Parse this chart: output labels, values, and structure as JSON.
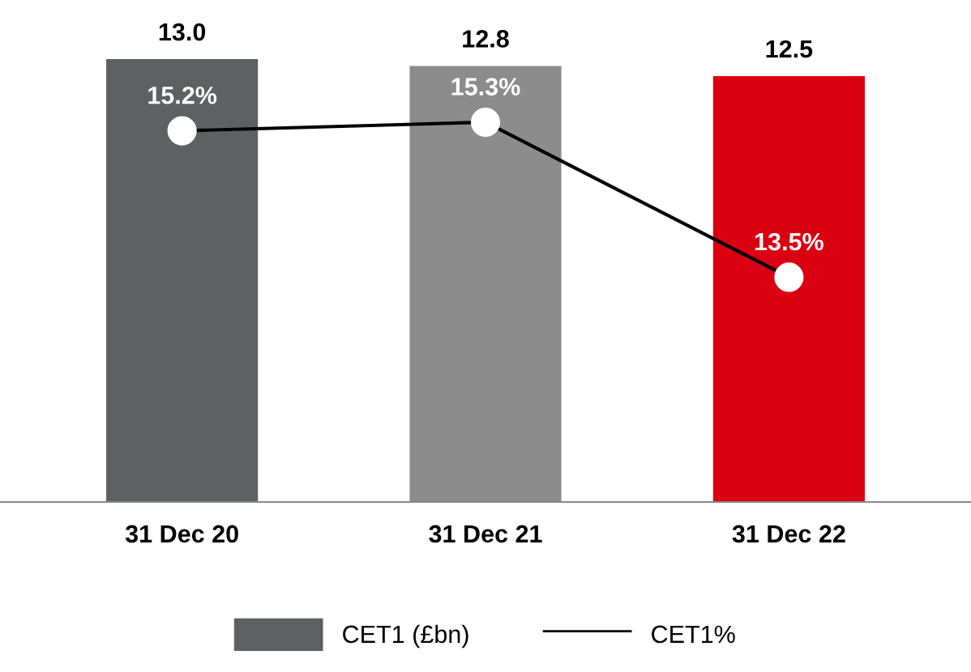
{
  "chart_data": {
    "type": "bar",
    "categories": [
      "31 Dec 20",
      "31 Dec 21",
      "31 Dec 22"
    ],
    "series": [
      {
        "name": "CET1 (£bn)",
        "colors": [
          "#5f6062",
          "#8c8c8c",
          "#db0011"
        ],
        "values": [
          13.0,
          12.8,
          12.5
        ],
        "value_labels": [
          "13.0",
          "12.8",
          "12.5"
        ]
      },
      {
        "name": "CET1%",
        "type": "line",
        "axis": "y2",
        "color": "#000000",
        "values": [
          15.2,
          15.3,
          13.5
        ],
        "value_labels": [
          "15.2%",
          "15.3%",
          "13.5%"
        ]
      }
    ],
    "tick_labels": "x",
    "marker": "circle",
    "line_style": "solid",
    "grid": false,
    "legend": "bottom"
  }
}
